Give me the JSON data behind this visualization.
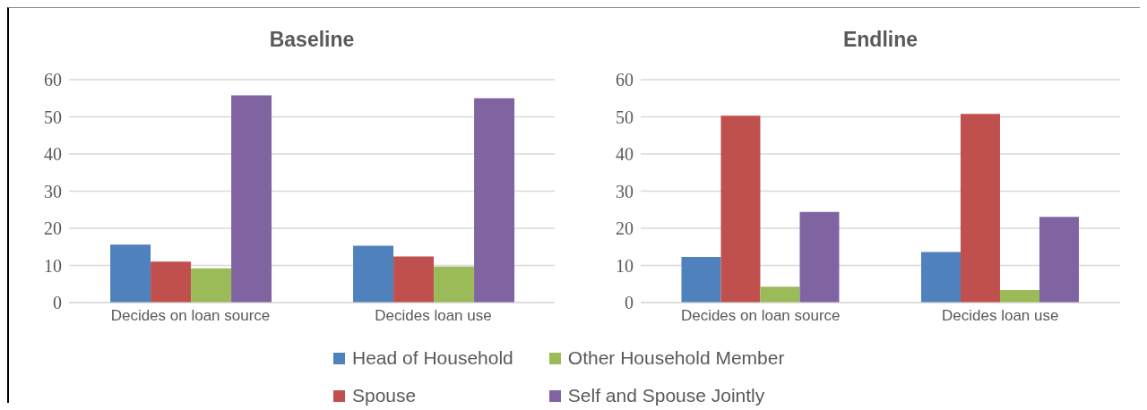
{
  "chart_data": [
    {
      "type": "bar",
      "title": "Baseline",
      "categories": [
        "Decides on loan source",
        "Decides loan use"
      ],
      "series": [
        {
          "name": "Head of Household",
          "color": "#4f81bd",
          "values": [
            15.6,
            15.3
          ]
        },
        {
          "name": "Spouse",
          "color": "#c0504d",
          "values": [
            11.0,
            12.4
          ]
        },
        {
          "name": "Other Household Member",
          "color": "#9bbb59",
          "values": [
            9.2,
            9.7
          ]
        },
        {
          "name": "Self and Spouse Jointly",
          "color": "#8064a2",
          "values": [
            55.8,
            55.0
          ]
        }
      ],
      "ylim": [
        0,
        60
      ],
      "yticks": [
        0,
        10,
        20,
        30,
        40,
        50,
        60
      ],
      "grid": "y",
      "legend": "bottom"
    },
    {
      "type": "bar",
      "title": "Endline",
      "categories": [
        "Decides on loan source",
        "Decides loan use"
      ],
      "series": [
        {
          "color": "#4f81bd",
          "values": [
            12.3,
            13.6
          ]
        },
        {
          "color": "#c0504d",
          "values": [
            50.3,
            50.8
          ]
        },
        {
          "color": "#9bbb59",
          "values": [
            4.3,
            3.4
          ]
        },
        {
          "color": "#8064a2",
          "values": [
            24.4,
            23.1
          ]
        }
      ],
      "ylim": [
        0,
        60
      ],
      "yticks": [
        0,
        10,
        20,
        30,
        40,
        50,
        60
      ],
      "grid": "y"
    }
  ]
}
